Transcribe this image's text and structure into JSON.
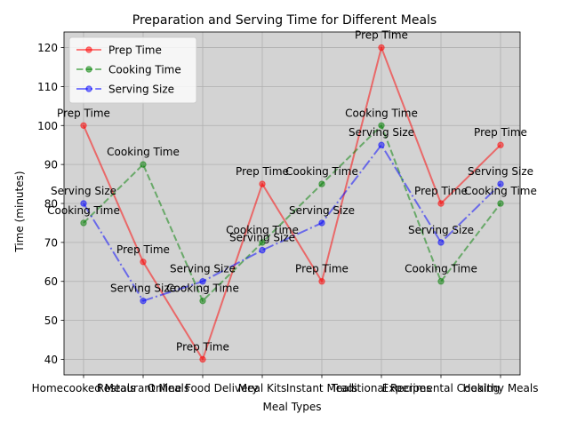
{
  "chart_data": {
    "type": "line",
    "title": "Preparation and Serving Time for Different Meals",
    "xlabel": "Meal Types",
    "ylabel": "Time (minutes)",
    "categories": [
      "Homecooked Meals",
      "Restaurant Meals",
      "Online Food Delivery",
      "Meal Kits",
      "Instant Meals",
      "Traditional Recipes",
      "Experimental Cooking",
      "Healthy Meals"
    ],
    "ylim": [
      36,
      124
    ],
    "yticks": [
      40,
      50,
      60,
      70,
      80,
      90,
      100,
      110,
      120
    ],
    "grid": true,
    "legend_position": "upper-left",
    "background_color": "#d3d3d3",
    "series": [
      {
        "name": "Prep Time",
        "values": [
          100,
          65,
          40,
          85,
          60,
          120,
          80,
          95
        ],
        "color": "#ff0000",
        "linestyle": "solid",
        "marker": "circle"
      },
      {
        "name": "Cooking Time",
        "values": [
          75,
          90,
          55,
          70,
          85,
          100,
          60,
          80
        ],
        "color": "#008000",
        "linestyle": "dashed",
        "marker": "circle"
      },
      {
        "name": "Serving Size",
        "values": [
          80,
          55,
          60,
          68,
          75,
          95,
          70,
          85
        ],
        "color": "#0000ff",
        "linestyle": "dashdot",
        "marker": "circle"
      }
    ]
  }
}
